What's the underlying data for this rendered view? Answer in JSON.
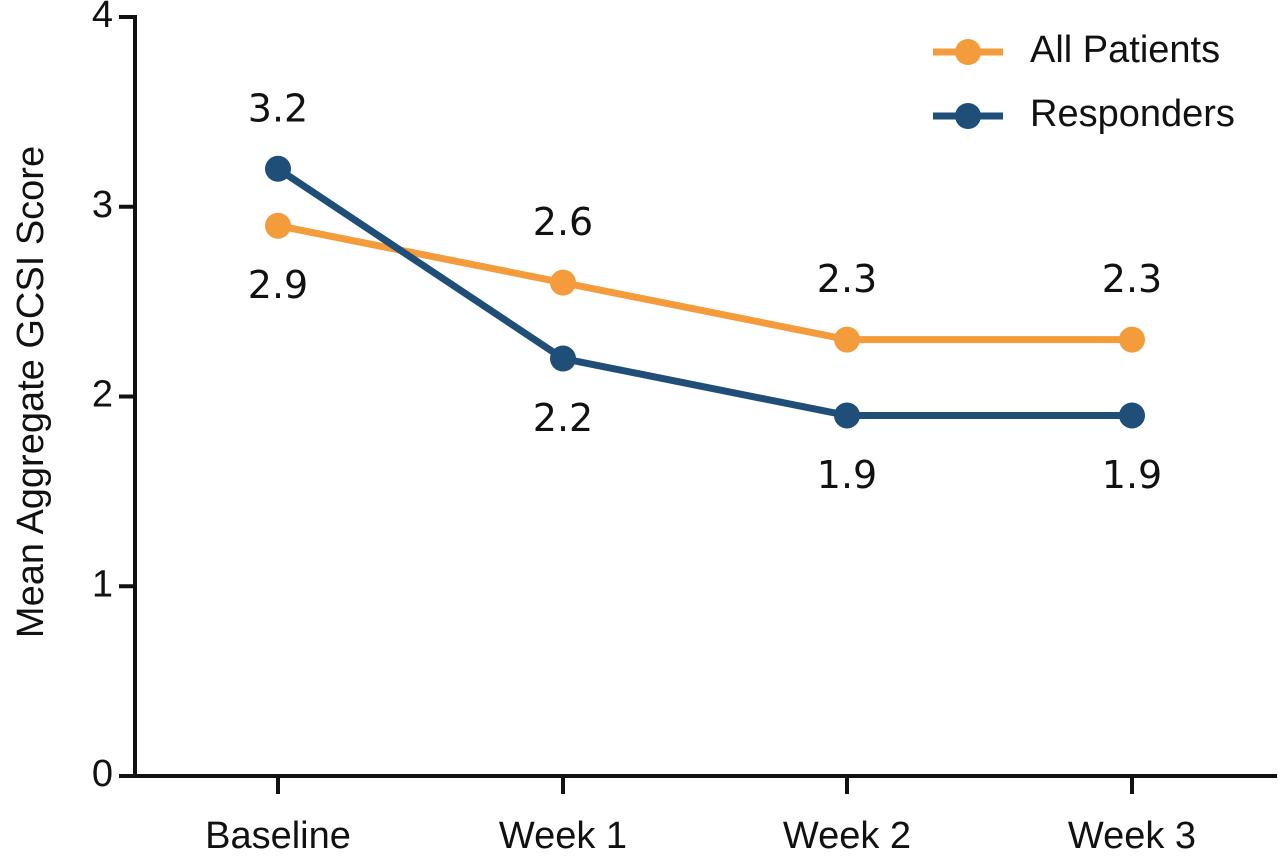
{
  "chart_data": {
    "type": "line",
    "title": "",
    "xlabel": "",
    "ylabel": "Mean Aggregate GCSI Score",
    "categories": [
      "Baseline",
      "Week 1",
      "Week 2",
      "Week 3"
    ],
    "ylim": [
      0,
      4
    ],
    "yticks": [
      0,
      1,
      2,
      3,
      4
    ],
    "grid": false,
    "legend_position": "top-right",
    "series": [
      {
        "name": "All Patients",
        "color": "#F49B3C",
        "values": [
          2.9,
          2.6,
          2.3,
          2.3
        ],
        "labels": [
          "2.9",
          "2.6",
          "2.3",
          "2.3"
        ],
        "label_side": [
          "below",
          "above",
          "above",
          "above"
        ]
      },
      {
        "name": "Responders",
        "color": "#1F4E79",
        "values": [
          3.2,
          2.2,
          1.9,
          1.9
        ],
        "labels": [
          "3.2",
          "2.2",
          "1.9",
          "1.9"
        ],
        "label_side": [
          "above",
          "below",
          "below",
          "below"
        ]
      }
    ]
  }
}
